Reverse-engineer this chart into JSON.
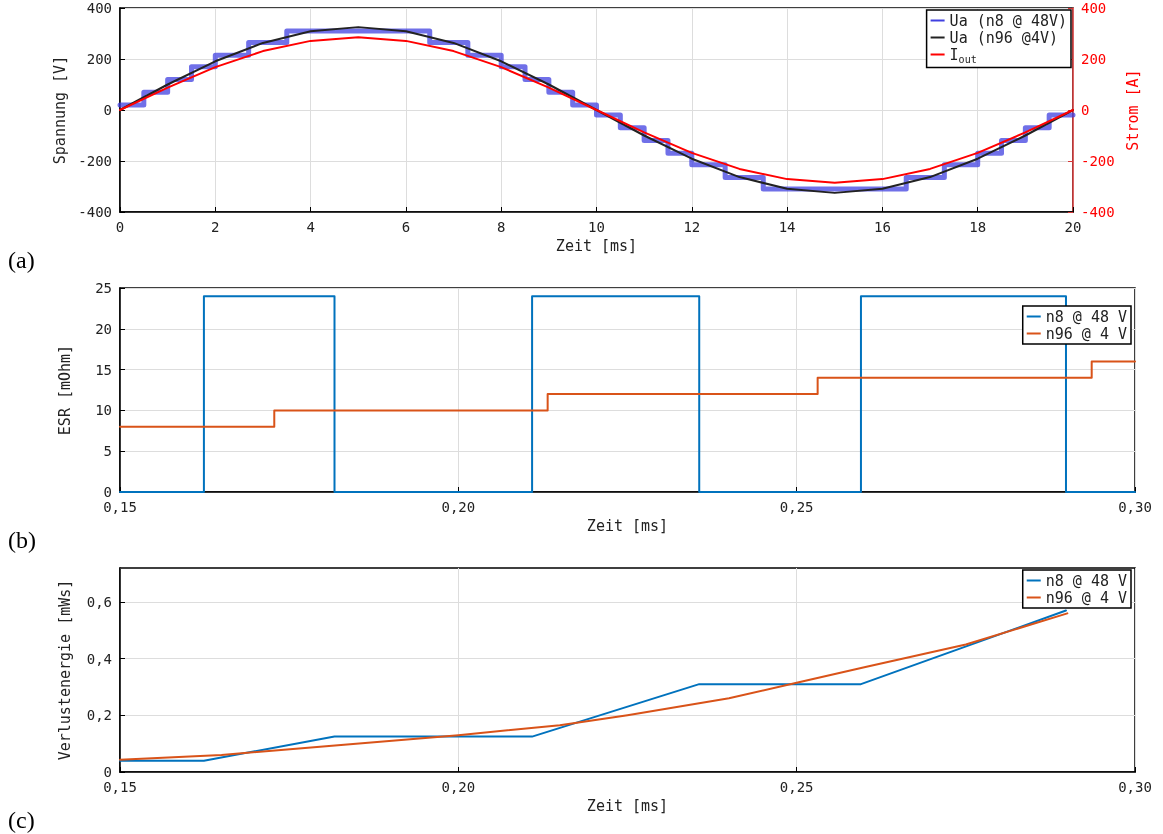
{
  "chart_data": [
    {
      "type": "line",
      "xlabel": "Zeit [ms]",
      "ylabel": "Spannung [V]",
      "y2label": "Strom [A]",
      "annotations": [
        "(a)"
      ],
      "xlim": [
        0,
        20
      ],
      "xticks": [
        0,
        2,
        4,
        6,
        8,
        10,
        12,
        14,
        16,
        18,
        20
      ],
      "ylim": [
        -400,
        400
      ],
      "yticks": [
        -400,
        -200,
        0,
        200,
        400
      ],
      "y2lim": [
        -400,
        400
      ],
      "y2ticks": [
        -400,
        -200,
        0,
        200,
        400
      ],
      "grid": true,
      "legend": "top right",
      "series": [
        {
          "name": "Ua (n8 @ 48V)",
          "type": "step",
          "color": "#4040e0",
          "x": [
            0,
            0.5,
            1,
            1.5,
            2,
            2.7,
            3.5,
            6.5,
            7.3,
            8,
            8.5,
            9,
            9.5,
            10,
            10.5,
            11,
            11.5,
            12,
            12.7,
            13.5,
            16.5,
            17.3,
            18,
            18.5,
            19,
            19.5,
            20
          ],
          "values": [
            20,
            70,
            120,
            170,
            215,
            265,
            310,
            265,
            215,
            170,
            120,
            70,
            20,
            -20,
            -70,
            -120,
            -170,
            -215,
            -265,
            -310,
            -265,
            -215,
            -170,
            -120,
            -70,
            -20,
            -20
          ]
        },
        {
          "name": "Ua (n96 @4V)",
          "color": "#222222",
          "x": [
            0,
            1,
            2,
            3,
            4,
            5,
            6,
            7,
            8,
            9,
            10,
            11,
            12,
            13,
            14,
            15,
            16,
            17,
            18,
            19,
            20
          ],
          "values": [
            0,
            100,
            191,
            263,
            309,
            325,
            309,
            263,
            191,
            100,
            0,
            -100,
            -191,
            -263,
            -309,
            -325,
            -309,
            -263,
            -191,
            -100,
            0
          ]
        },
        {
          "name": "I$_{out}$",
          "color": "#ff0000",
          "axis": "y2",
          "x": [
            0,
            1,
            2,
            3,
            4,
            5,
            6,
            7,
            8,
            9,
            10,
            11,
            12,
            13,
            14,
            15,
            16,
            17,
            18,
            19,
            20
          ],
          "values": [
            0,
            88,
            168,
            231,
            271,
            285,
            271,
            231,
            168,
            88,
            0,
            -88,
            -168,
            -231,
            -271,
            -285,
            -271,
            -231,
            -168,
            -88,
            0
          ]
        }
      ]
    },
    {
      "type": "step",
      "xlabel": "Zeit [ms]",
      "ylabel": "ESR [mOhm]",
      "annotations": [
        "(b)"
      ],
      "xlim": [
        0.15,
        0.3
      ],
      "xticks": [
        {
          "value": 0.15,
          "label": "0,15"
        },
        {
          "value": 0.2,
          "label": "0,20"
        },
        {
          "value": 0.25,
          "label": "0,25"
        },
        {
          "value": 0.3,
          "label": "0,30"
        }
      ],
      "ylim": [
        0,
        25
      ],
      "yticks": [
        0,
        5,
        10,
        15,
        20,
        25
      ],
      "grid": true,
      "legend": "top right",
      "series": [
        {
          "name": "n8 @ 48 V",
          "color": "#0072bd",
          "x": [
            0.15,
            0.1624,
            0.1817,
            0.2109,
            0.2356,
            0.2595,
            0.2898,
            0.3
          ],
          "values": [
            0,
            24,
            0,
            24,
            0,
            24,
            0,
            0
          ]
        },
        {
          "name": "n96 @ 4 V",
          "color": "#d95319",
          "x": [
            0.15,
            0.1728,
            0.2132,
            0.2531,
            0.2936,
            0.3
          ],
          "values": [
            8,
            10,
            12,
            14,
            16,
            16
          ]
        }
      ]
    },
    {
      "type": "line",
      "xlabel": "Zeit [ms]",
      "ylabel": "Verlustenergie [mWs]",
      "annotations": [
        "(c)"
      ],
      "xlim": [
        0.15,
        0.3
      ],
      "xticks": [
        {
          "value": 0.15,
          "label": "0,15"
        },
        {
          "value": 0.2,
          "label": "0,20"
        },
        {
          "value": 0.25,
          "label": "0,25"
        },
        {
          "value": 0.3,
          "label": "0,30"
        }
      ],
      "ylim": [
        0,
        0.72
      ],
      "yticks": [
        0,
        {
          "value": 0.2,
          "label": "0,2"
        },
        {
          "value": 0.4,
          "label": "0,4"
        },
        {
          "value": 0.6,
          "label": "0,6"
        }
      ],
      "grid": true,
      "legend": "top right",
      "series": [
        {
          "name": "n8 @ 48 V",
          "color": "#0072bd",
          "x": [
            0.15,
            0.1624,
            0.1817,
            0.2109,
            0.2356,
            0.2595,
            0.2898
          ],
          "values": [
            0.04,
            0.04,
            0.125,
            0.125,
            0.31,
            0.31,
            0.57
          ]
        },
        {
          "name": "n96 @ 4 V",
          "color": "#d95319",
          "x": [
            0.15,
            0.165,
            0.18,
            0.2,
            0.215,
            0.225,
            0.24,
            0.25,
            0.26,
            0.275,
            0.29
          ],
          "values": [
            0.043,
            0.06,
            0.09,
            0.13,
            0.165,
            0.2,
            0.26,
            0.315,
            0.37,
            0.45,
            0.56
          ]
        }
      ]
    }
  ]
}
